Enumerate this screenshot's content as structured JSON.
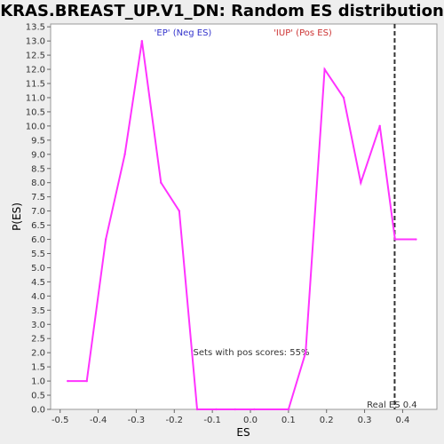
{
  "chart_data": {
    "type": "line",
    "title": "KRAS.BREAST_UP.V1_DN: Random ES distribution",
    "xlabel": "ES",
    "ylabel": "P(ES)",
    "xlim": [
      -0.525,
      0.49
    ],
    "ylim": [
      0.0,
      13.6
    ],
    "x_ticks": [
      -0.5,
      -0.4,
      -0.3,
      -0.2,
      -0.1,
      0.0,
      0.1,
      0.2,
      0.3,
      0.4
    ],
    "x_tick_labels": [
      "-0.5",
      "-0.4",
      "-0.3",
      "-0.2",
      "-0.1",
      "0.0",
      "0.1",
      "0.2",
      "0.3",
      "0.4"
    ],
    "y_ticks": [
      0.0,
      0.5,
      1.0,
      1.5,
      2.0,
      2.5,
      3.0,
      3.5,
      4.0,
      4.5,
      5.0,
      5.5,
      6.0,
      6.5,
      7.0,
      7.5,
      8.0,
      8.5,
      9.0,
      9.5,
      10.0,
      10.5,
      11.0,
      11.5,
      12.0,
      12.5,
      13.0,
      13.5
    ],
    "y_tick_labels": [
      "0.0",
      "0.5",
      "1.0",
      "1.5",
      "2.0",
      "2.5",
      "3.0",
      "3.5",
      "4.0",
      "4.5",
      "5.0",
      "5.5",
      "6.0",
      "6.5",
      "7.0",
      "7.5",
      "8.0",
      "8.5",
      "9.0",
      "9.5",
      "10.0",
      "10.5",
      "11.0",
      "11.5",
      "12.0",
      "12.5",
      "13.0",
      "13.5"
    ],
    "grid": false,
    "series": [
      {
        "color": "#ff33ff",
        "x": [
          -0.48,
          -0.43,
          -0.38,
          -0.33,
          -0.285,
          -0.235,
          -0.187,
          -0.14,
          -0.09,
          -0.04,
          0.01,
          0.1,
          0.145,
          0.195,
          0.245,
          0.29,
          0.34,
          0.38,
          0.435
        ],
        "y": [
          1.0,
          1.0,
          6.0,
          9.0,
          13.0,
          8.0,
          7.0,
          0.0,
          0.0,
          0.0,
          0.0,
          0.0,
          2.0,
          12.0,
          11.0,
          8.0,
          10.0,
          6.0,
          6.0
        ]
      }
    ],
    "real_es": {
      "value": 0.379,
      "color": "#333333",
      "label": "Real ES 0.4"
    },
    "annotations": {
      "neg_label": {
        "text": "'EP' (Neg ES)",
        "color": "#3333cc"
      },
      "pos_label": {
        "text": "'IUP' (Pos ES)",
        "color": "#cc3333"
      },
      "pos_scores": {
        "text": "Sets with pos scores: 55%",
        "color": "#333333"
      }
    }
  }
}
